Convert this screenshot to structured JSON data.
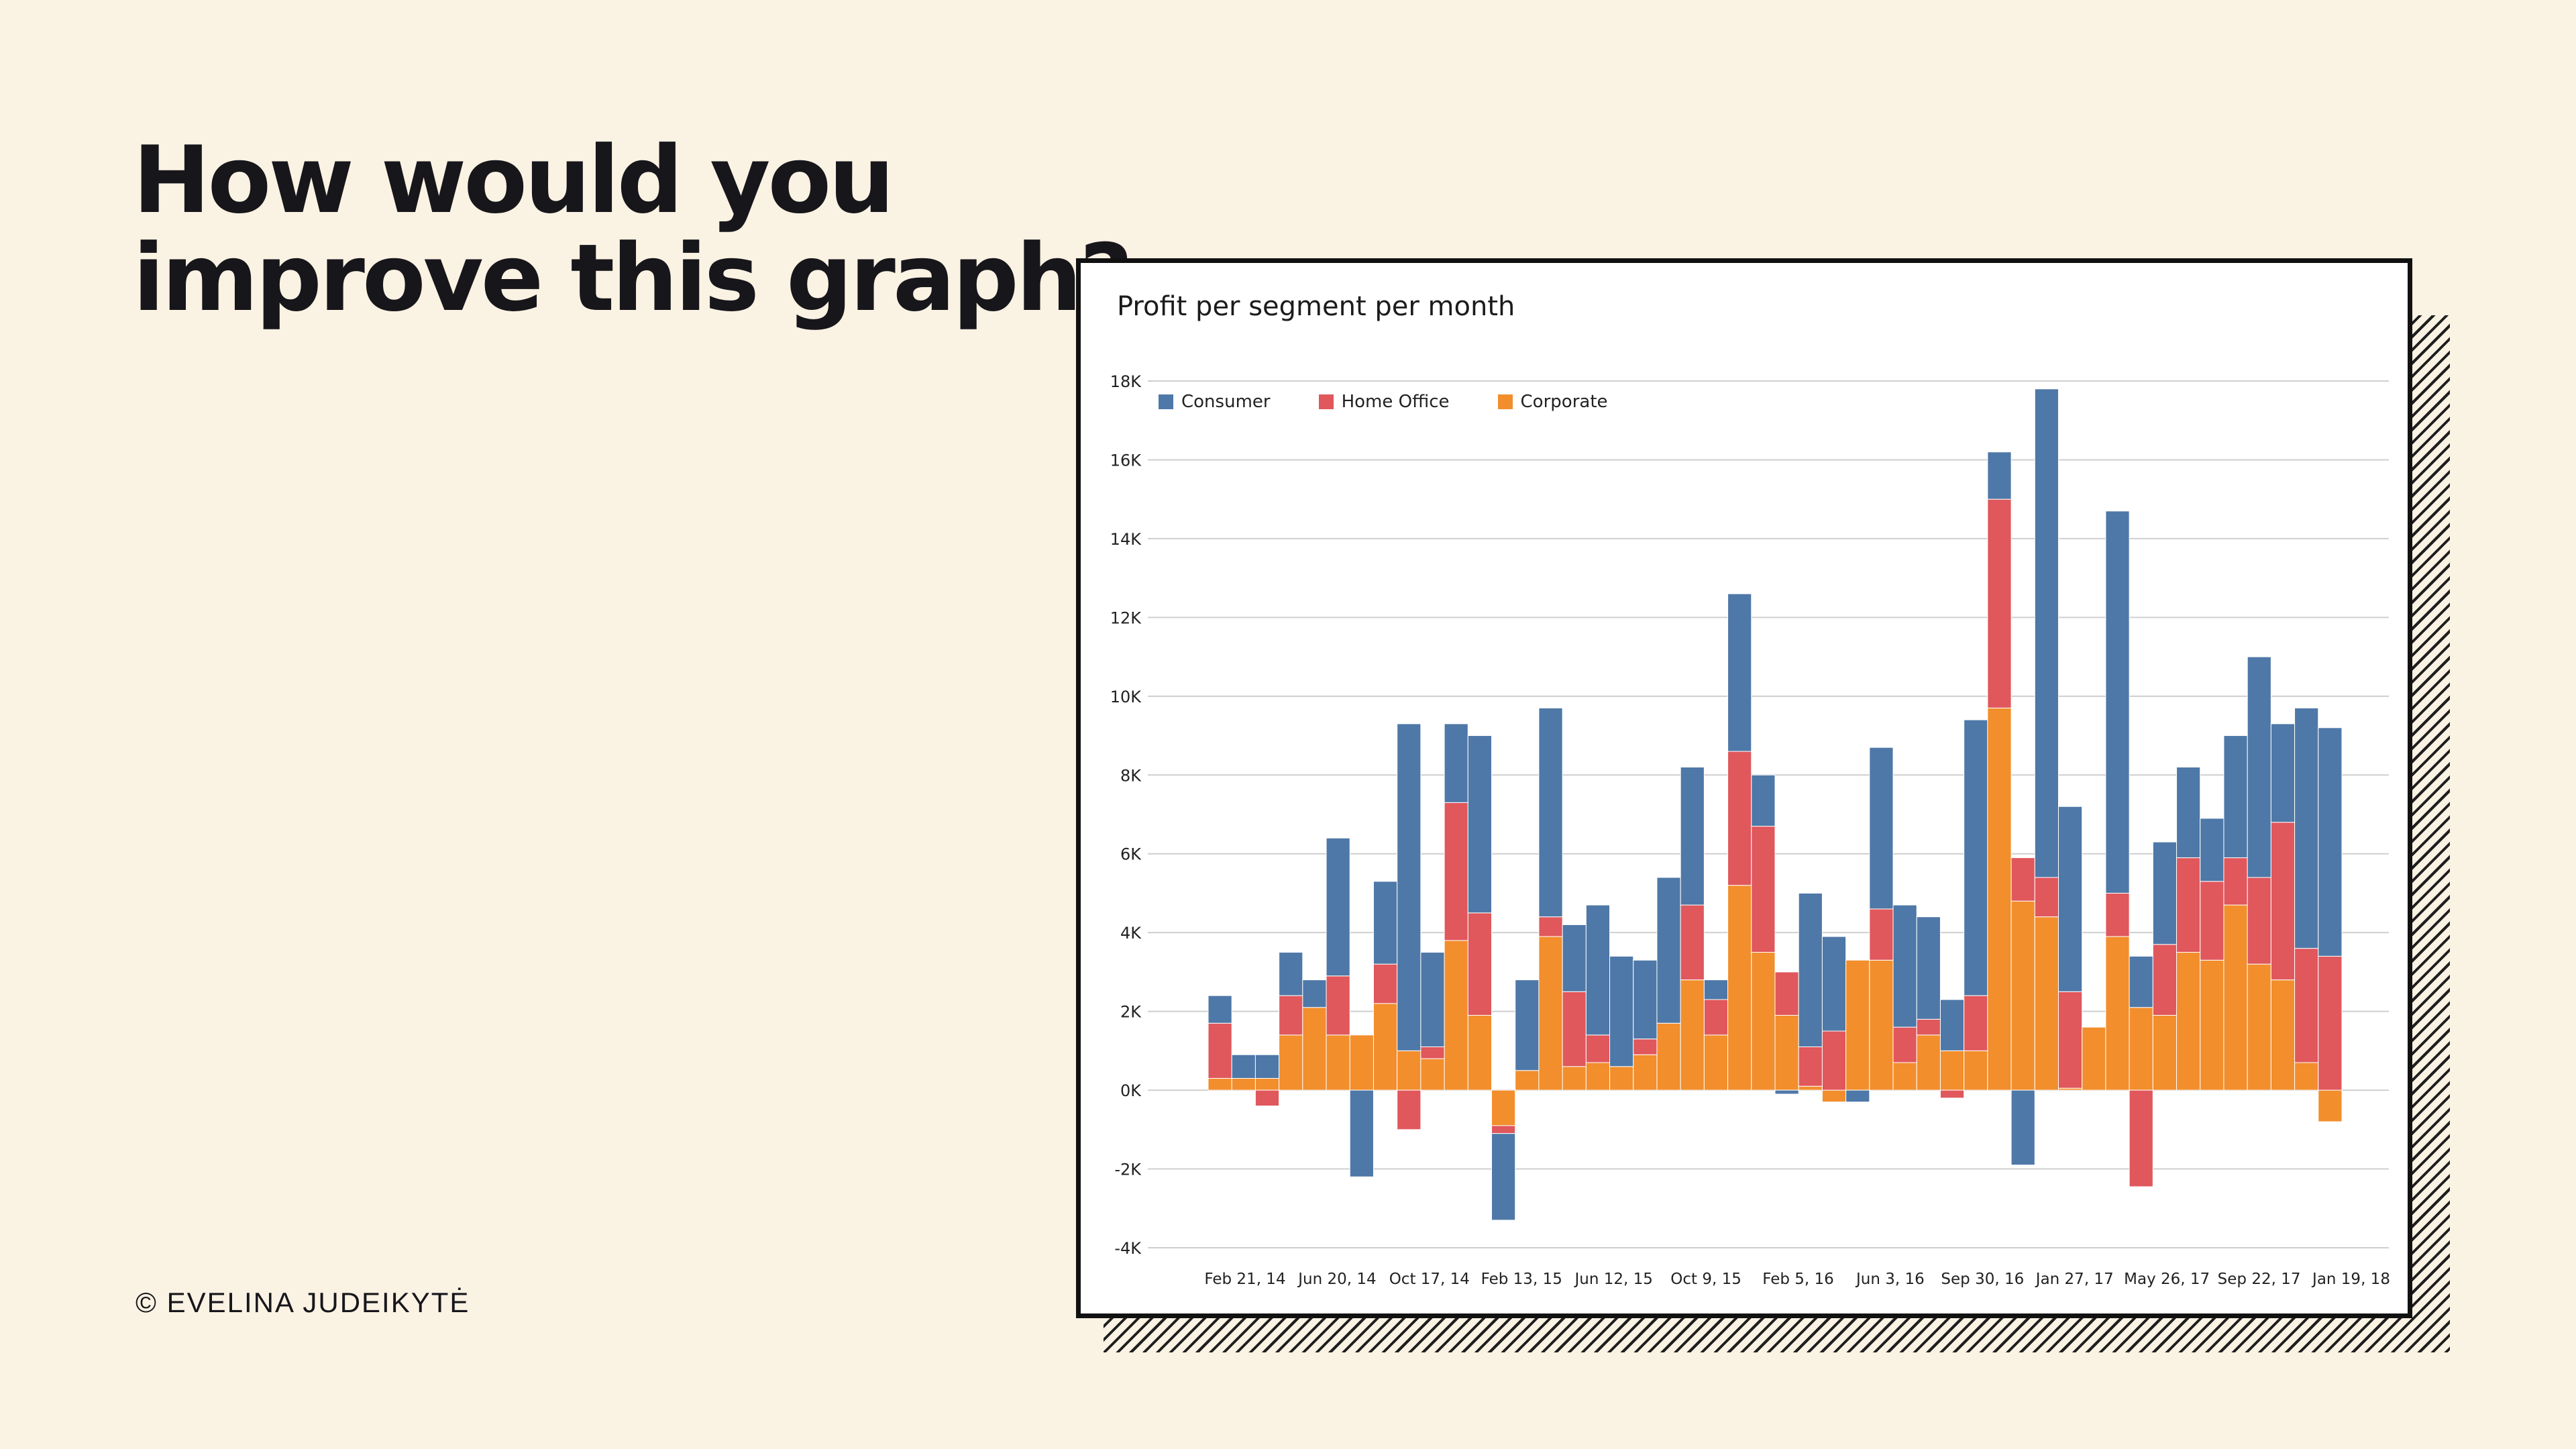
{
  "headline": [
    "How would you",
    "improve this graph?"
  ],
  "credit": "© EVELINA JUDEIKYTĖ",
  "colors": {
    "Consumer": "#4e78a7",
    "Home Office": "#e0575c",
    "Corporate": "#f28e2c"
  },
  "chart_data": {
    "type": "bar",
    "stacked": true,
    "title": "Profit per segment per month",
    "xlabel": "",
    "ylabel": "",
    "ylim": [
      -4000,
      18000
    ],
    "yticks": [
      -4000,
      -2000,
      0,
      2000,
      4000,
      6000,
      8000,
      10000,
      12000,
      14000,
      16000,
      18000
    ],
    "ytick_labels": [
      "-4K",
      "-2K",
      "0K",
      "2K",
      "4K",
      "6K",
      "8K",
      "10K",
      "12K",
      "14K",
      "16K",
      "18K"
    ],
    "xtick_labels": [
      "Feb 21, 14",
      "Jun 20, 14",
      "Oct 17, 14",
      "Feb 13, 15",
      "Jun 12, 15",
      "Oct 9, 15",
      "Feb 5, 16",
      "Jun 3, 16",
      "Sep 30, 16",
      "Jan 27, 17",
      "May 26, 17",
      "Sep 22, 17",
      "Jan 19, 18"
    ],
    "grid": true,
    "legend_position": "top-left",
    "series": [
      {
        "name": "Corporate",
        "values": [
          300,
          300,
          300,
          1400,
          2100,
          1400,
          1400,
          2200,
          1000,
          800,
          3800,
          1900,
          -900,
          500,
          3900,
          600,
          700,
          600,
          900,
          1700,
          2800,
          1400,
          5200,
          3500,
          1900,
          100,
          -300,
          3300,
          3300,
          700,
          1400,
          1000,
          1000,
          9700,
          4800,
          4400,
          50,
          1600,
          3900,
          2100,
          1900,
          3500,
          3300,
          4700,
          3200,
          2800,
          700,
          -800
        ]
      },
      {
        "name": "Home Office",
        "values": [
          1400,
          0,
          -400,
          1000,
          0,
          1500,
          0,
          1000,
          -1000,
          300,
          3500,
          2600,
          -200,
          0,
          500,
          1900,
          700,
          0,
          400,
          0,
          1900,
          900,
          3400,
          3200,
          1100,
          1000,
          1500,
          0,
          1300,
          900,
          400,
          -200,
          1400,
          5300,
          1100,
          1000,
          2450,
          0,
          1100,
          -2450,
          1800,
          2400,
          2000,
          1200,
          2200,
          4000,
          2900,
          3400
        ]
      },
      {
        "name": "Consumer",
        "values": [
          700,
          600,
          600,
          1100,
          700,
          3500,
          -2200,
          2100,
          8300,
          2400,
          2000,
          4500,
          -2200,
          2300,
          5300,
          1700,
          3300,
          2800,
          2000,
          3700,
          3500,
          500,
          4000,
          1300,
          -100,
          3900,
          2400,
          -300,
          4100,
          3100,
          2600,
          1300,
          7000,
          1200,
          -1900,
          12400,
          4700,
          0,
          9700,
          1300,
          2600,
          2300,
          1600,
          3100,
          5600,
          2500,
          6100,
          5800
        ]
      }
    ]
  }
}
